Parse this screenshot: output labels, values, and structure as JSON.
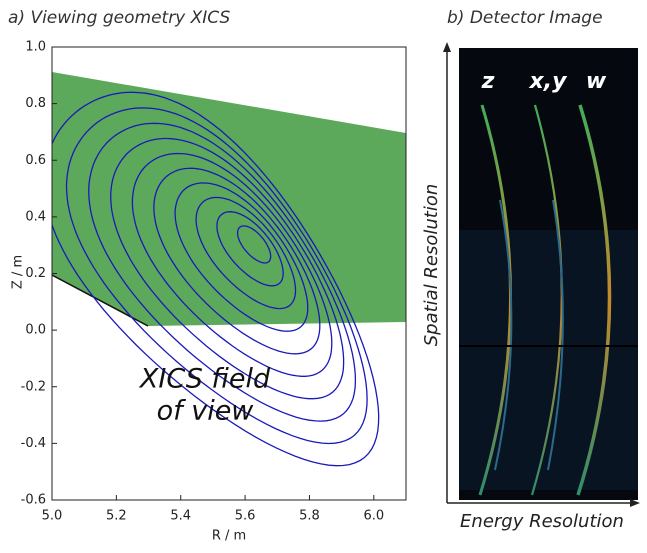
{
  "chart_data": [
    {
      "type": "contour",
      "title": "a) Viewing geometry XICS",
      "xlabel": "R / m",
      "ylabel": "Z / m",
      "annotation": [
        "XICS field",
        "of view"
      ],
      "xlim": [
        5.0,
        6.1
      ],
      "ylim": [
        -0.6,
        1.0
      ],
      "xticks": [
        {
          "value": 5.0,
          "label": "5.0"
        },
        {
          "value": 5.2,
          "label": "5.2"
        },
        {
          "value": 5.4,
          "label": "5.4"
        },
        {
          "value": 5.6,
          "label": "5.6"
        },
        {
          "value": 5.8,
          "label": "5.8"
        },
        {
          "value": 6.0,
          "label": "6.0"
        }
      ],
      "yticks": [
        {
          "value": -0.6,
          "label": "-0.6"
        },
        {
          "value": -0.4,
          "label": "-0.4"
        },
        {
          "value": -0.2,
          "label": "-0.2"
        },
        {
          "value": 0.0,
          "label": "0.0"
        },
        {
          "value": 0.2,
          "label": "0.2"
        },
        {
          "value": 0.4,
          "label": "0.4"
        },
        {
          "value": 0.6,
          "label": "0.6"
        },
        {
          "value": 0.8,
          "label": "0.8"
        },
        {
          "value": 1.0,
          "label": "1.0"
        }
      ]
    },
    {
      "type": "image",
      "title": "b) Detector Image",
      "xlabel": "Energy Resolution",
      "ylabel": "Spatial Resolution",
      "line_labels": [
        "z",
        "x,y",
        "w"
      ]
    }
  ]
}
